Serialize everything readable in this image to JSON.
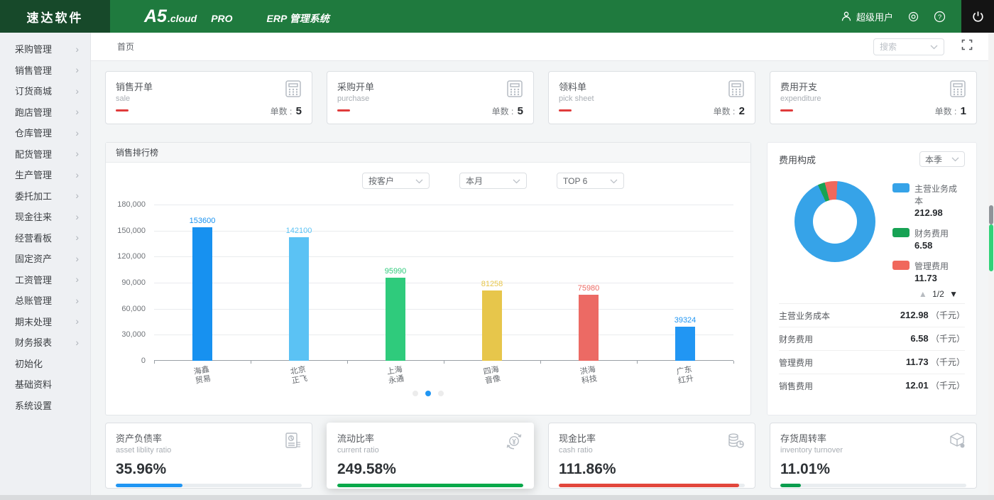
{
  "header": {
    "logo": "速达软件",
    "product": "A5",
    "product_suffix": ".cloud",
    "edition": "PRO",
    "system_name": "ERP 管理系统",
    "user": "超级用户"
  },
  "sidebar": {
    "items": [
      {
        "label": "采购管理",
        "has_children": true
      },
      {
        "label": "销售管理",
        "has_children": true
      },
      {
        "label": "订货商城",
        "has_children": true
      },
      {
        "label": "跑店管理",
        "has_children": true
      },
      {
        "label": "仓库管理",
        "has_children": true
      },
      {
        "label": "配货管理",
        "has_children": true
      },
      {
        "label": "生产管理",
        "has_children": true
      },
      {
        "label": "委托加工",
        "has_children": true
      },
      {
        "label": "现金往来",
        "has_children": true
      },
      {
        "label": "经营看板",
        "has_children": true
      },
      {
        "label": "固定资产",
        "has_children": true
      },
      {
        "label": "工资管理",
        "has_children": true
      },
      {
        "label": "总账管理",
        "has_children": true
      },
      {
        "label": "期末处理",
        "has_children": true
      },
      {
        "label": "财务报表",
        "has_children": true
      },
      {
        "label": "初始化",
        "has_children": false
      },
      {
        "label": "基础资料",
        "has_children": false
      },
      {
        "label": "系统设置",
        "has_children": false
      }
    ]
  },
  "tabbar": {
    "active_tab": "首页",
    "search_placeholder": "搜索"
  },
  "stat_cards": [
    {
      "title": "销售开单",
      "subtitle": "sale",
      "count_label": "单数",
      "count": "5",
      "icon": "calculator-icon",
      "accent": "#e03b3b"
    },
    {
      "title": "采购开单",
      "subtitle": "purchase",
      "count_label": "单数",
      "count": "5",
      "icon": "calculator-icon",
      "accent": "#e03b3b"
    },
    {
      "title": "领料单",
      "subtitle": "pick sheet",
      "count_label": "单数",
      "count": "2",
      "icon": "calculator-icon",
      "accent": "#e03b3b"
    },
    {
      "title": "费用开支",
      "subtitle": "expenditure",
      "count_label": "单数",
      "count": "1",
      "icon": "calculator-icon",
      "accent": "#e03b3b"
    }
  ],
  "sales_panel": {
    "title": "销售排行榜",
    "filters": [
      {
        "value": "按客户"
      },
      {
        "value": "本月"
      },
      {
        "value": "TOP 6"
      }
    ],
    "chart_data": {
      "type": "bar",
      "categories": [
        "海鑫贸易",
        "北京正飞",
        "上海永通",
        "四海音像",
        "洪海科技",
        "广东红升"
      ],
      "values": [
        153600,
        142100,
        95990,
        81258,
        75980,
        39324
      ],
      "bar_colors": [
        "#1791f0",
        "#5bc2f4",
        "#2fcb7c",
        "#e7c64b",
        "#ec6a64",
        "#2196f3"
      ],
      "ylim": [
        0,
        180000
      ],
      "ytick_labels": [
        "0",
        "30,000",
        "60,000",
        "90,000",
        "120,000",
        "150,000",
        "180,000"
      ],
      "grid": true,
      "legend_position": "none"
    },
    "carousel": {
      "dots": 3,
      "active_index": 1
    }
  },
  "expense_panel": {
    "title": "费用构成",
    "period": "本季",
    "chart_data": {
      "type": "pie",
      "series": [
        {
          "name": "主营业务成本",
          "value": 212.98,
          "color": "#36a3e8"
        },
        {
          "name": "财务费用",
          "value": 6.58,
          "color": "#17a254"
        },
        {
          "name": "管理费用",
          "value": 11.73,
          "color": "#f0685c"
        }
      ],
      "unit": "千元"
    },
    "pagination": "1/2",
    "rows": [
      {
        "label": "主营业务成本",
        "value": "212.98",
        "unit": "（千元）"
      },
      {
        "label": "财务费用",
        "value": "6.58",
        "unit": "（千元）"
      },
      {
        "label": "管理费用",
        "value": "11.73",
        "unit": "（千元）"
      },
      {
        "label": "销售费用",
        "value": "12.01",
        "unit": "（千元）"
      }
    ]
  },
  "ratio_cards": [
    {
      "title": "资产负债率",
      "subtitle": "asset liblity ratio",
      "value": "35.96%",
      "percent": 35.96,
      "bar_color": "#2196f3",
      "icon": "report-icon",
      "elevated": false
    },
    {
      "title": "流动比率",
      "subtitle": "current ratio",
      "value": "249.58%",
      "percent": 100,
      "bar_color": "#09a84a",
      "icon": "refresh-yen-icon",
      "elevated": true
    },
    {
      "title": "现金比率",
      "subtitle": "cash ratio",
      "value": "111.86%",
      "percent": 97,
      "bar_color": "#e2473c",
      "icon": "coins-icon",
      "elevated": false
    },
    {
      "title": "存货周转率",
      "subtitle": "inventory turnover",
      "value": "11.01%",
      "percent": 11,
      "bar_color": "#0a9d4e",
      "icon": "cube-icon",
      "elevated": false
    }
  ]
}
